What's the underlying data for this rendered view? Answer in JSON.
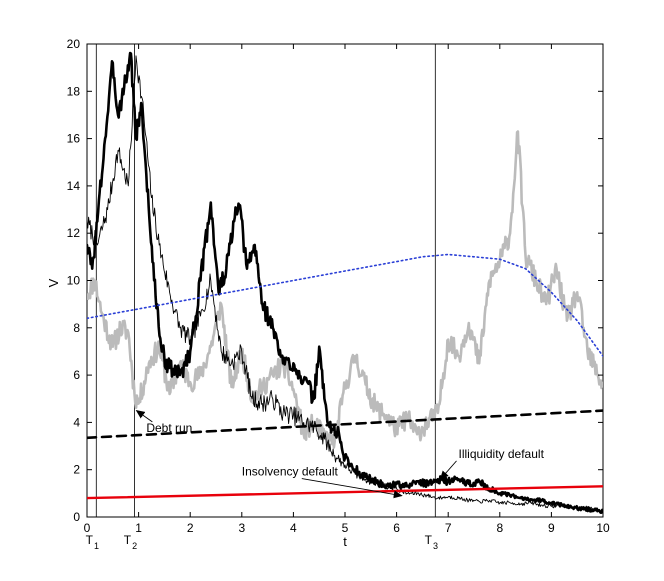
{
  "chart_data": {
    "type": "line",
    "title": "",
    "xlabel": "t",
    "ylabel": "V",
    "xlim": [
      0,
      10
    ],
    "ylim": [
      0,
      20
    ],
    "xticks": [
      0,
      1,
      2,
      3,
      4,
      5,
      6,
      7,
      8,
      9,
      10
    ],
    "yticks": [
      0,
      2,
      4,
      6,
      8,
      10,
      12,
      14,
      16,
      18,
      20
    ],
    "grid": false,
    "legend": "none",
    "time_markers": [
      {
        "label": "T",
        "sub": "1",
        "x": 0.18,
        "line": false
      },
      {
        "label": "T",
        "sub": "2",
        "x": 0.92,
        "line": true
      },
      {
        "label": "T",
        "sub": "3",
        "x": 6.75,
        "line": true
      }
    ],
    "extra_vlines": [
      0.18
    ],
    "series": [
      {
        "color": "#bbbbbb",
        "width": 2.6,
        "dash": "",
        "jitter": 0.45,
        "seed": 11,
        "x": [
          0,
          0.15,
          0.3,
          0.5,
          0.65,
          0.8,
          0.92,
          1.0,
          1.2,
          1.4,
          1.6,
          1.8,
          2.0,
          2.2,
          2.4,
          2.6,
          2.8,
          3.0,
          3.2,
          3.4,
          3.6,
          3.8,
          4.0,
          4.2,
          4.4,
          4.6,
          4.8,
          5.0,
          5.2,
          5.4,
          5.6,
          5.8,
          6.0,
          6.2,
          6.4,
          6.6,
          6.8,
          7.0,
          7.2,
          7.4,
          7.6,
          7.8,
          8.0,
          8.2,
          8.35,
          8.5,
          8.7,
          8.9,
          9.1,
          9.3,
          9.5,
          9.7,
          9.9,
          10.0
        ],
        "y": [
          9.4,
          10.0,
          8.5,
          7.2,
          8.0,
          7.8,
          5.2,
          4.8,
          6.5,
          7.2,
          5.2,
          6.5,
          5.7,
          6.0,
          7.2,
          9.0,
          5.5,
          7.0,
          5.0,
          5.5,
          6.0,
          6.5,
          5.4,
          3.5,
          4.0,
          3.4,
          3.2,
          5.5,
          6.8,
          5.6,
          4.6,
          4.3,
          3.7,
          4.2,
          3.5,
          4.0,
          4.4,
          7.5,
          6.8,
          8.2,
          6.5,
          10.0,
          10.8,
          12.0,
          16.3,
          11.0,
          10.0,
          9.0,
          10.5,
          8.3,
          9.5,
          7.0,
          6.0,
          5.6
        ]
      },
      {
        "color": "#000000",
        "width": 0.9,
        "dash": "",
        "jitter": 0.4,
        "seed": 7,
        "x": [
          0,
          0.2,
          0.4,
          0.6,
          0.8,
          0.95,
          1.1,
          1.25,
          1.4,
          1.6,
          1.8,
          2.0,
          2.2,
          2.4,
          2.6,
          2.8,
          3.0,
          3.2,
          3.4,
          3.6,
          3.8,
          4.0,
          4.2,
          4.4,
          4.6,
          4.8,
          5.0,
          5.2,
          5.4,
          5.6,
          5.8,
          6.0,
          6.2,
          6.4,
          6.6,
          6.8,
          7.0,
          7.2,
          7.4,
          7.6,
          7.8,
          8.0,
          8.2,
          8.4,
          8.6,
          8.8,
          9.0,
          9.2,
          9.4,
          9.6,
          9.8,
          10.0
        ],
        "y": [
          12.5,
          11.5,
          13.0,
          15.5,
          14.0,
          19.5,
          17.0,
          13.5,
          11.5,
          9.5,
          8.0,
          7.5,
          8.5,
          10.0,
          7.0,
          6.5,
          7.0,
          5.0,
          4.8,
          5.0,
          4.4,
          4.3,
          4.0,
          3.8,
          3.3,
          2.6,
          2.2,
          1.8,
          1.6,
          1.4,
          1.3,
          1.2,
          1.0,
          1.0,
          0.9,
          0.8,
          0.85,
          0.8,
          0.7,
          0.65,
          0.7,
          0.6,
          0.6,
          0.55,
          0.6,
          0.5,
          0.45,
          0.5,
          0.4,
          0.4,
          0.35,
          0.3
        ]
      },
      {
        "color": "#000000",
        "width": 2.6,
        "dash": "",
        "jitter": 0.4,
        "seed": 3,
        "x": [
          0,
          0.1,
          0.2,
          0.35,
          0.5,
          0.6,
          0.75,
          0.85,
          0.95,
          1.05,
          1.15,
          1.3,
          1.45,
          1.6,
          1.8,
          2.0,
          2.2,
          2.4,
          2.55,
          2.7,
          2.85,
          2.95,
          3.1,
          3.25,
          3.4,
          3.6,
          3.8,
          4.0,
          4.2,
          4.4,
          4.5,
          4.6,
          4.7,
          4.85,
          5.0,
          5.2,
          5.4,
          5.6,
          5.8,
          6.0,
          6.2,
          6.4,
          6.6,
          6.8,
          7.0,
          7.2,
          7.4,
          7.6,
          7.8,
          8.0,
          8.2,
          8.4,
          8.6,
          8.8,
          9.0,
          9.2,
          9.4,
          9.6,
          9.8,
          10.0
        ],
        "y": [
          11.5,
          10.5,
          12.5,
          16.0,
          19.2,
          17.0,
          18.5,
          19.6,
          16.0,
          17.5,
          14.5,
          10.0,
          7.0,
          6.3,
          6.0,
          7.0,
          10.0,
          13.3,
          9.5,
          10.5,
          12.5,
          13.2,
          10.5,
          11.5,
          9.0,
          8.0,
          6.5,
          6.5,
          5.8,
          5.0,
          7.2,
          5.0,
          3.8,
          3.6,
          2.5,
          2.0,
          1.7,
          1.5,
          1.3,
          1.4,
          1.3,
          1.5,
          1.4,
          1.6,
          1.5,
          1.6,
          1.4,
          1.5,
          1.2,
          1.0,
          0.9,
          0.8,
          0.75,
          0.7,
          0.6,
          0.5,
          0.4,
          0.35,
          0.3,
          0.25
        ]
      },
      {
        "color": "#2a3fd6",
        "width": 1.6,
        "dash": "1.5 3",
        "jitter": 0,
        "seed": 1,
        "x": [
          0,
          1,
          2,
          3,
          4,
          5,
          6,
          6.5,
          7,
          7.5,
          8,
          8.5,
          9,
          9.5,
          10
        ],
        "y": [
          8.4,
          8.8,
          9.2,
          9.6,
          10.0,
          10.4,
          10.8,
          11.0,
          11.1,
          11.0,
          10.9,
          10.5,
          9.5,
          8.3,
          6.8
        ]
      },
      {
        "color": "#000000",
        "width": 2.6,
        "dash": "9 6",
        "jitter": 0,
        "seed": 1,
        "x": [
          0,
          10
        ],
        "y": [
          3.35,
          4.5
        ]
      },
      {
        "color": "#e8000b",
        "width": 2.4,
        "dash": "",
        "jitter": 0,
        "seed": 1,
        "x": [
          0,
          10
        ],
        "y": [
          0.8,
          1.3
        ]
      }
    ],
    "annotations": [
      {
        "text": "Debt run",
        "x": 1.15,
        "y": 3.6,
        "anchor": "start",
        "arrow_to": [
          0.96,
          4.5
        ]
      },
      {
        "text": "Insolvency default",
        "x": 3.0,
        "y": 1.75,
        "anchor": "start",
        "arrow_to": [
          6.1,
          0.9
        ]
      },
      {
        "text": "Illiquidity default",
        "x": 7.2,
        "y": 2.5,
        "anchor": "start",
        "arrow_to": [
          6.85,
          1.6
        ]
      }
    ]
  }
}
